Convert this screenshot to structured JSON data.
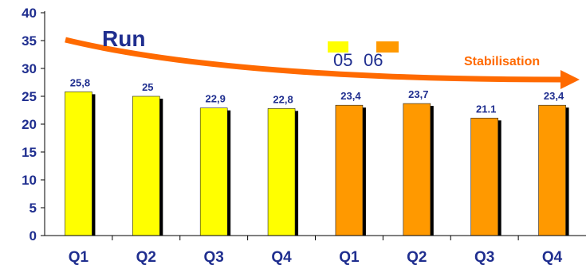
{
  "chart_data": {
    "type": "bar",
    "categories": [
      "Q1",
      "Q2",
      "Q3",
      "Q4",
      "Q1",
      "Q2",
      "Q3",
      "Q4"
    ],
    "series": [
      {
        "name": "05",
        "color": "#ffff00",
        "values": [
          25.8,
          25,
          22.9,
          22.8,
          null,
          null,
          null,
          null
        ]
      },
      {
        "name": "06",
        "color": "#ff9900",
        "values": [
          null,
          null,
          null,
          null,
          23.4,
          23.7,
          21.1,
          23.4
        ]
      }
    ],
    "data_labels": [
      "25,8",
      "25",
      "22,9",
      "22,8",
      "23,4",
      "23,7",
      "21.1",
      "23,4"
    ],
    "ylim": [
      0,
      40
    ],
    "yticks": [
      0,
      5,
      10,
      15,
      20,
      25,
      30,
      35,
      40
    ],
    "xlabel": "",
    "ylabel": "",
    "legend_position": "top-center",
    "grid": false,
    "annotations": {
      "run": "Run",
      "stabilisation": "Stabilisation",
      "arrow_color": "#ff6a00"
    },
    "text_color": "#1f2e8f"
  }
}
